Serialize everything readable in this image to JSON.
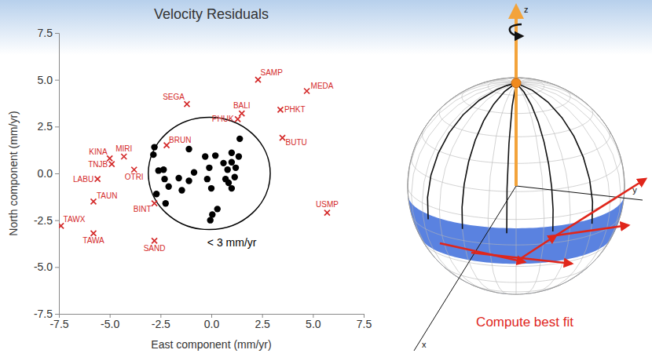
{
  "chart_data": {
    "type": "scatter",
    "title": "Velocity Residuals",
    "x_label": "East component (mm/yr)",
    "y_label": "North component (mm/yr)",
    "xlim": [
      -7.5,
      7.5
    ],
    "ylim": [
      -7.5,
      7.5
    ],
    "xticks": [
      -7.5,
      {
        "value": -5,
        "label": "-5.0"
      },
      -2.5,
      {
        "value": 0,
        "label": "0.0"
      },
      2.5,
      {
        "value": 5,
        "label": "5.0"
      },
      7.5
    ],
    "yticks": [
      -7.5,
      {
        "value": -5,
        "label": "-5.0"
      },
      -2.5,
      {
        "value": 0,
        "label": "0.0"
      },
      2.5,
      {
        "value": 5,
        "label": "5.0"
      },
      7.5
    ],
    "grid": false,
    "series": [
      {
        "color": "#d42a2a",
        "marker": "x",
        "labels": [
          "SAMP",
          "MEDA",
          "SEGA",
          "BALI",
          "PHUK",
          "PHKT",
          "BUTU",
          "USMP",
          "BRUN",
          "MIRI",
          "KINA",
          "TNJB",
          "LABU",
          "OTRI",
          "TAUN",
          "BINT",
          "TAWX",
          "TAWA",
          "SAND"
        ],
        "x": [
          2.3,
          4.7,
          -1.2,
          1.5,
          1.3,
          3.4,
          3.5,
          5.7,
          -2.2,
          -4.3,
          -5.0,
          -4.9,
          -5.6,
          -3.8,
          -5.8,
          -2.8,
          -7.4,
          -5.8,
          -2.8
        ],
        "values": [
          5.0,
          4.4,
          3.7,
          3.2,
          2.9,
          3.4,
          1.9,
          -2.1,
          1.5,
          0.9,
          0.8,
          0.5,
          -0.3,
          0.2,
          -1.5,
          -1.6,
          -2.8,
          -3.2,
          -3.6
        ]
      },
      {
        "color": "#000000",
        "marker": "circle",
        "x": [
          -2.8,
          -2.85,
          -2.6,
          -2.35,
          -2.3,
          -2.1,
          -2.7,
          -2.25,
          -1.6,
          -1.45,
          -1.1,
          -1.1,
          -0.85,
          -0.3,
          0.2,
          -0.2,
          0.0,
          0.05,
          -0.05,
          0.3,
          0.7,
          0.6,
          0.8,
          1.0,
          1.0,
          1.2,
          1.15,
          1.4,
          1.35,
          1.0,
          0.85,
          -0.1
        ],
        "values": [
          1.4,
          1.0,
          0.15,
          0.2,
          -0.3,
          -0.7,
          -1.1,
          -1.6,
          -0.25,
          -0.9,
          -0.4,
          1.3,
          0.05,
          0.9,
          0.95,
          -0.3,
          -0.8,
          -2.2,
          -2.5,
          -1.9,
          -0.3,
          0.55,
          0.2,
          1.1,
          0.6,
          0.3,
          -0.2,
          1.85,
          0.9,
          -0.8,
          -0.5,
          0.3
        ]
      }
    ],
    "circle": {
      "center": [
        -0.1,
        0
      ],
      "radius": 3
    },
    "annotations": [
      {
        "text": "< 3 mm/yr",
        "x": -0.2,
        "y": -3.9
      }
    ]
  },
  "diagram": {
    "axis_labels": [
      "z",
      "y",
      "x"
    ],
    "caption": "Compute best fit"
  }
}
